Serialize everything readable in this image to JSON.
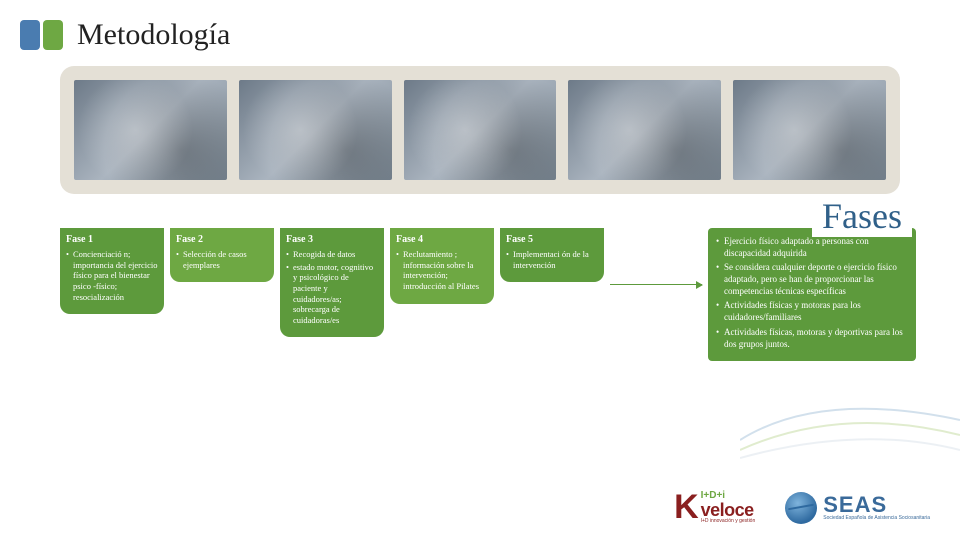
{
  "title": "Metodología",
  "fases_label": "Fases",
  "phases": [
    {
      "title": "Fase 1",
      "color": "#5d9a3c",
      "items": [
        "Concienciació n; importancia del ejercicio físico para el bienestar psico -físico; resocialización"
      ]
    },
    {
      "title": "Fase 2",
      "color": "#6ea843",
      "items": [
        "Selección de casos ejemplares"
      ]
    },
    {
      "title": "Fase 3",
      "color": "#5d9a3c",
      "items": [
        "Recogida de datos",
        "estado motor, cognitivo y psicológico de paciente y cuidadores/as; sobrecarga de cuidadoras/es"
      ]
    },
    {
      "title": "Fase 4",
      "color": "#6ea843",
      "items": [
        "Reclutamiento ; información sobre la intervención; introducción al Pilates"
      ]
    },
    {
      "title": "Fase 5",
      "color": "#5d9a3c",
      "items": [
        "Implementaci ón de la intervención"
      ]
    }
  ],
  "result": {
    "bg": "#5d9a3c",
    "items": [
      "Ejercicio físico adaptado a personas con discapacidad adquirida",
      "Se considera cualquier deporte o ejercicio físico adaptado, pero se han de proporcionar las competencias técnicas específicas",
      "Actividades físicas y motoras para los cuidadores/familiares",
      "Actividades físicas, motoras y deportivas para los dos grupos juntos."
    ]
  },
  "logos": {
    "kveloce": {
      "idi": "I+D+i",
      "name": "veloce",
      "sub": "I+D innovación y gestión"
    },
    "seas": {
      "name": "SEAS",
      "sub": "Sociedad Española de Asistencia Sociosanitaria"
    }
  },
  "title_bar_colors": [
    "#4a7cb0",
    "#6ea843"
  ]
}
